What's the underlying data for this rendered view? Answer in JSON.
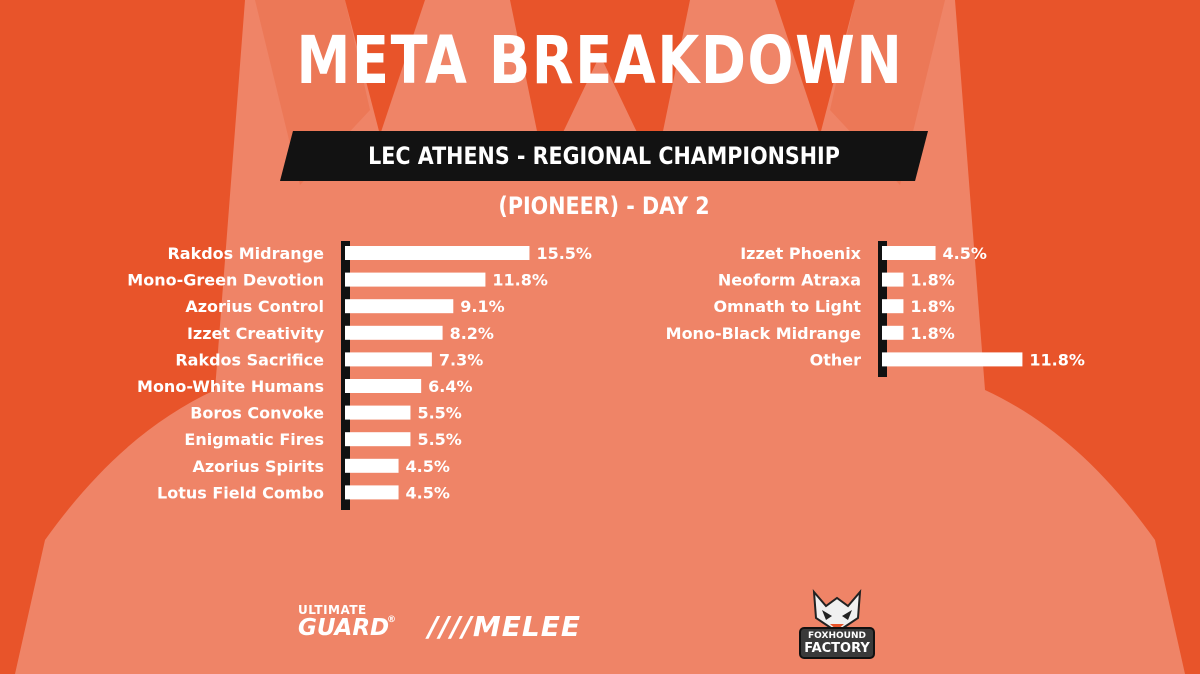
{
  "header": {
    "title": "META BREAKDOWN",
    "subtitle": "LEC ATHENS - REGIONAL CHAMPIONSHIP (PIONEER) - DAY 2"
  },
  "chart_data": {
    "type": "bar",
    "orientation": "horizontal",
    "unit": "%",
    "groups": [
      {
        "categories": [
          "Rakdos Midrange",
          "Mono-Green Devotion",
          "Azorius Control",
          "Izzet Creativity",
          "Rakdos Sacrifice",
          "Mono-White Humans",
          "Boros Convoke",
          "Enigmatic Fires",
          "Azorius Spirits",
          "Lotus Field Combo"
        ],
        "values": [
          15.5,
          11.8,
          9.1,
          8.2,
          7.3,
          6.4,
          5.5,
          5.5,
          4.5,
          4.5
        ],
        "labels": [
          "15.5%",
          "11.8%",
          "9.1%",
          "8.2%",
          "7.3%",
          "6.4%",
          "5.5%",
          "5.5%",
          "4.5%",
          "4.5%"
        ]
      },
      {
        "categories": [
          "Izzet Phoenix",
          "Neoform Atraxa",
          "Omnath to Light",
          "Mono-Black Midrange",
          "Other"
        ],
        "values": [
          4.5,
          1.8,
          1.8,
          1.8,
          11.8
        ],
        "labels": [
          "4.5%",
          "1.8%",
          "1.8%",
          "1.8%",
          "11.8%"
        ]
      }
    ]
  },
  "sponsors": {
    "ultimate_top": "ULTIMATE",
    "ultimate_main": "GUARD",
    "ultimate_reg": "®",
    "melee": "////MELEE",
    "fox_top": "FOXHOUND",
    "fox_bottom": "FACTORY"
  },
  "colors": {
    "background": "#e8542a",
    "crown": "#f0876a",
    "bar": "#ffffff",
    "axis": "#111111"
  }
}
